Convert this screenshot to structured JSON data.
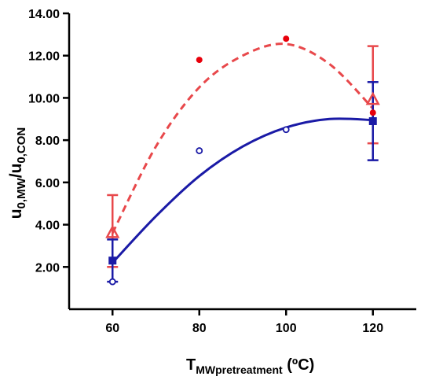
{
  "chart_data": {
    "type": "scatter",
    "xlabel_main": "T",
    "xlabel_sub": "MWpretreatment",
    "xlabel_unit": " (ºC)",
    "ylabel_main": "u",
    "ylabel_sub1": "0,MW",
    "ylabel_mid": "/u",
    "ylabel_sub2": "0,CON",
    "xlim": [
      50,
      130
    ],
    "ylim": [
      0,
      14
    ],
    "x_ticks": [
      60,
      80,
      100,
      120
    ],
    "x_tick_labels": [
      "60",
      "80",
      "100",
      "120"
    ],
    "y_ticks": [
      2,
      4,
      6,
      8,
      10,
      12,
      14
    ],
    "y_tick_labels": [
      "2.00",
      "4.00",
      "6.00",
      "8.00",
      "10.00",
      "12.00",
      "14.00"
    ],
    "colors": {
      "red": "#e8484b",
      "red_dot": "#e8000b",
      "blue": "#1a1aa6"
    },
    "series": [
      {
        "marker": "filled-circle",
        "color": "red_dot",
        "points": [
          [
            80,
            11.8
          ],
          [
            100,
            12.8
          ],
          [
            120,
            9.3
          ]
        ]
      },
      {
        "marker": "open-circle",
        "color": "blue",
        "points": [
          [
            60,
            1.3
          ],
          [
            80,
            7.5
          ],
          [
            100,
            8.5
          ]
        ]
      },
      {
        "marker": "open-triangle",
        "color": "red",
        "points": [
          [
            60,
            3.6
          ],
          [
            120,
            9.9
          ]
        ],
        "error": [
          [
            2.0,
            5.4
          ],
          [
            7.85,
            12.45
          ]
        ]
      },
      {
        "marker": "filled-square",
        "color": "blue",
        "points": [
          [
            60,
            2.3
          ],
          [
            120,
            8.9
          ]
        ],
        "error": [
          [
            1.3,
            3.3
          ],
          [
            7.05,
            10.75
          ]
        ]
      }
    ],
    "fits": [
      {
        "style": "dashed",
        "color": "red",
        "points": [
          [
            60,
            3.6
          ],
          [
            70,
            7.7
          ],
          [
            80,
            10.5
          ],
          [
            90,
            12.0
          ],
          [
            100,
            12.55
          ],
          [
            110,
            11.6
          ],
          [
            120,
            9.5
          ]
        ]
      },
      {
        "style": "solid",
        "color": "blue",
        "points": [
          [
            60,
            2.2
          ],
          [
            70,
            4.4
          ],
          [
            80,
            6.3
          ],
          [
            90,
            7.7
          ],
          [
            100,
            8.6
          ],
          [
            110,
            9.0
          ],
          [
            120,
            8.95
          ]
        ]
      }
    ]
  }
}
